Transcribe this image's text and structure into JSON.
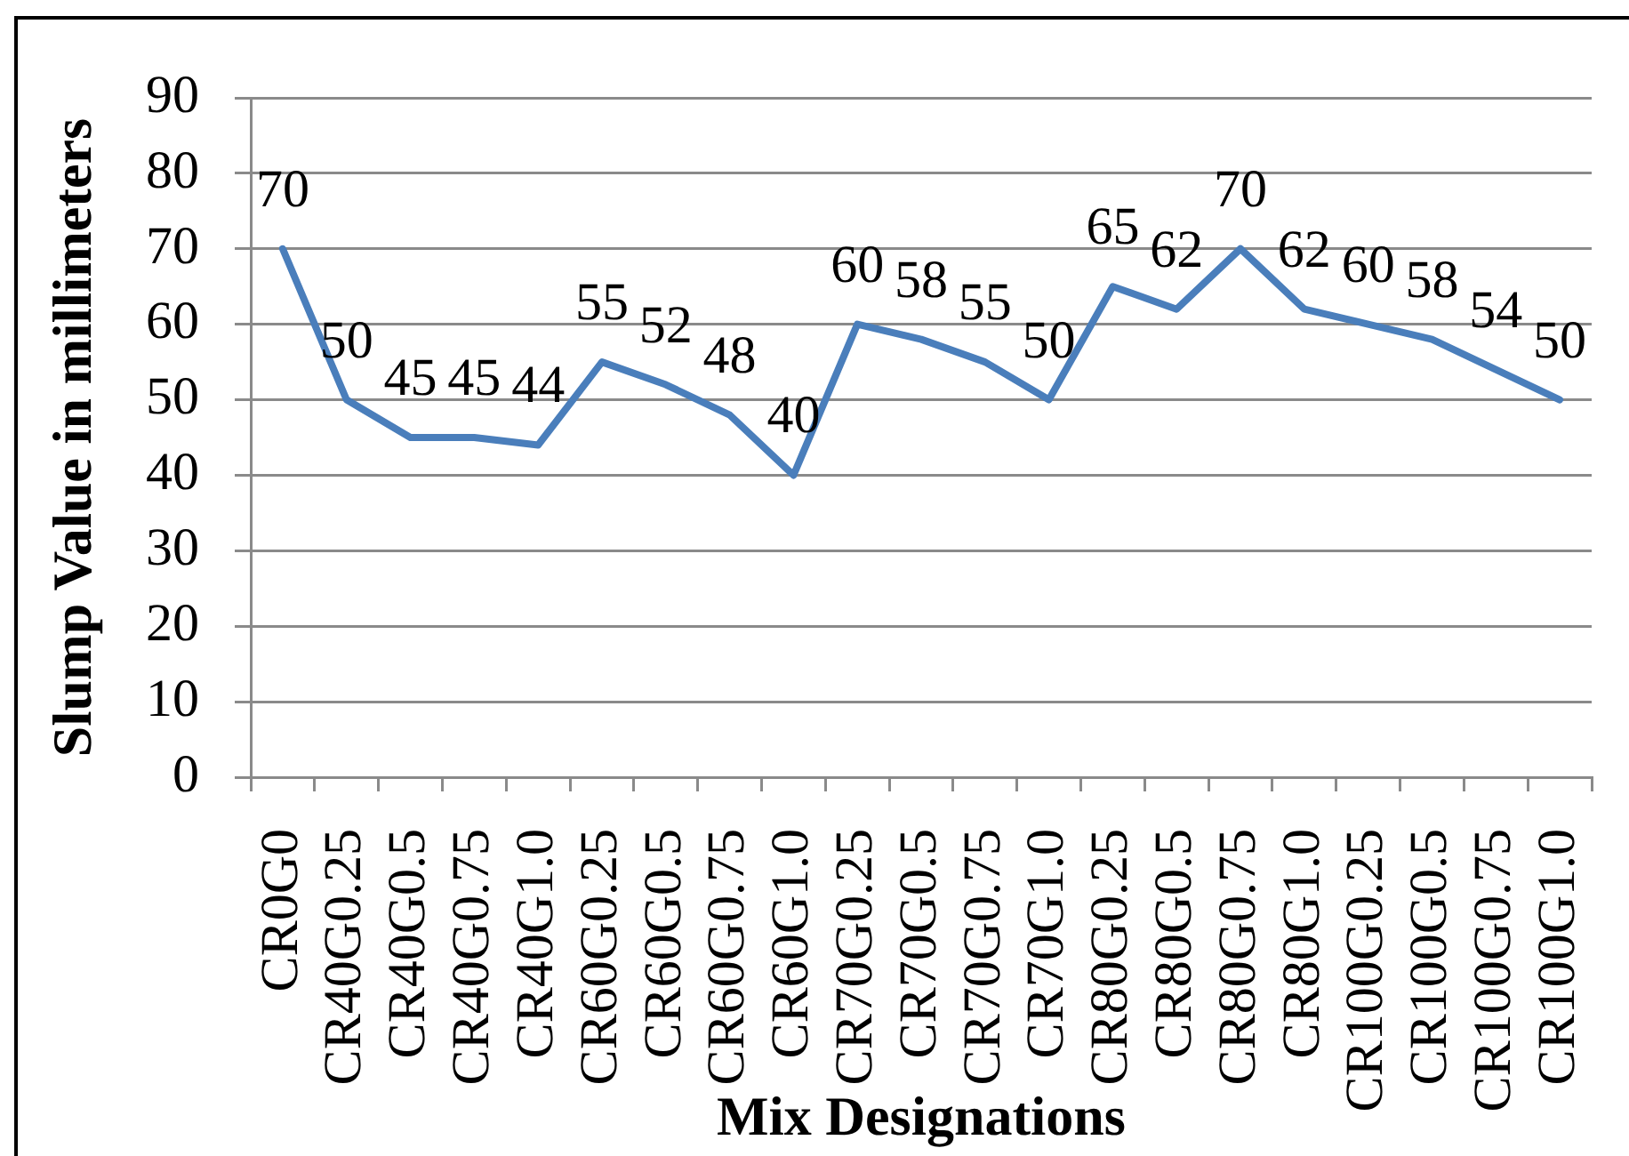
{
  "chart_data": {
    "type": "line",
    "xlabel": "Mix Designations",
    "ylabel": "Slump Value in millimeters",
    "categories": [
      "CR0G0",
      "CR40G0.25",
      "CR40G0.5",
      "CR40G0.75",
      "CR40G1.0",
      "CR60G0.25",
      "CR60G0.5",
      "CR60G0.75",
      "CR60G1.0",
      "CR70G0.25",
      "CR70G0.5",
      "CR70G0.75",
      "CR70G1.0",
      "CR80G0.25",
      "CR80G0.5",
      "CR80G0.75",
      "CR80G1.0",
      "CR100G0.25",
      "CR100G0.5",
      "CR100G0.75",
      "CR100G1.0"
    ],
    "series": [
      {
        "color": "#4a7ebb",
        "values": [
          70,
          50,
          45,
          45,
          44,
          55,
          52,
          48,
          40,
          60,
          58,
          55,
          50,
          65,
          62,
          70,
          62,
          60,
          58,
          54,
          50
        ]
      }
    ],
    "ylim": [
      0,
      90
    ],
    "yticks": [
      0,
      10,
      20,
      30,
      40,
      50,
      60,
      70,
      80,
      90
    ],
    "grid": "y",
    "marker": "none",
    "data_labels": true
  }
}
